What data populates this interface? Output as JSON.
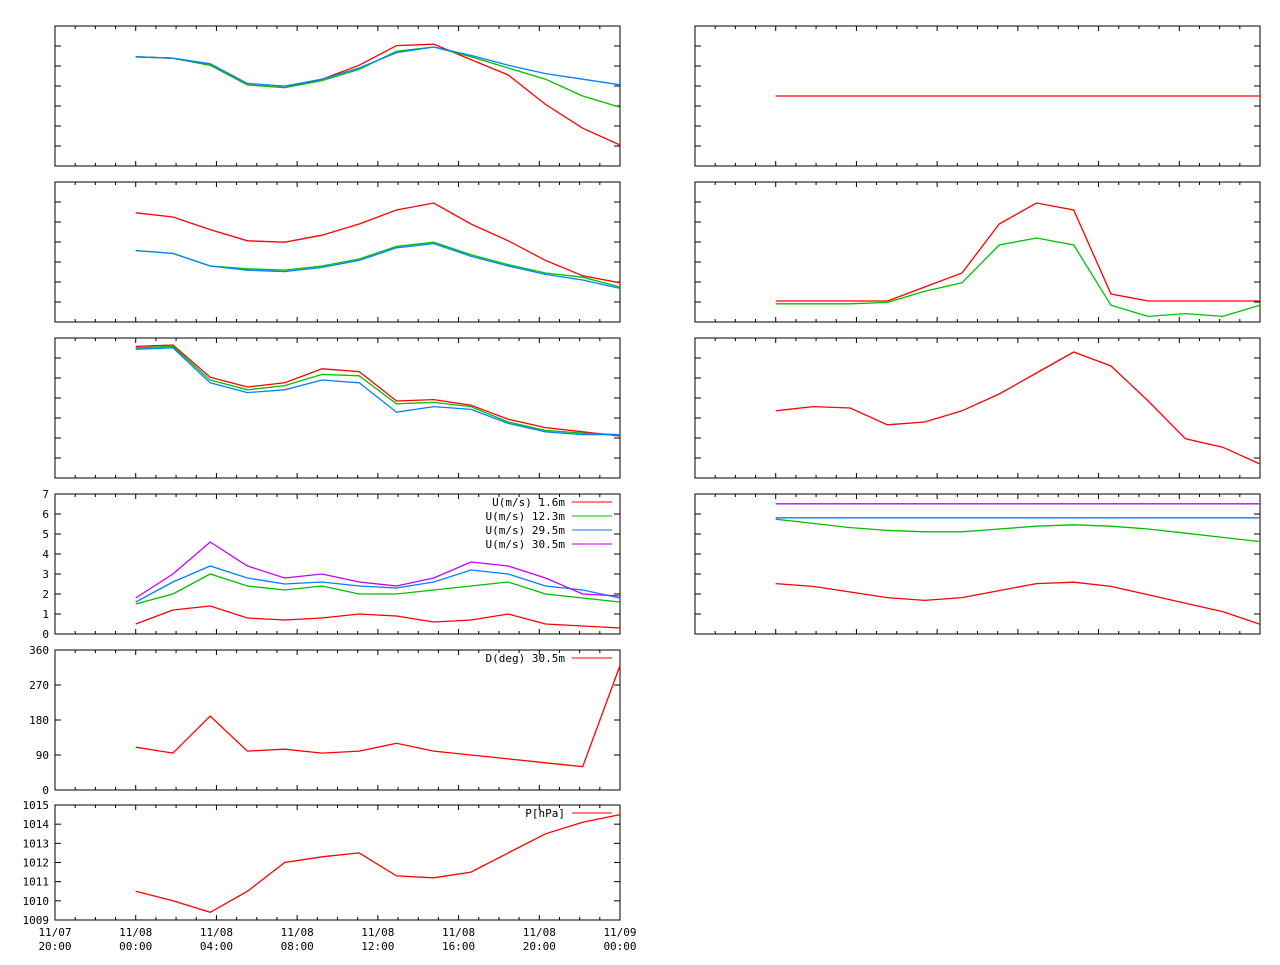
{
  "chart_data": {
    "type": "line",
    "x_range": [
      "11/07 20:00",
      "11/09 00:00"
    ],
    "x_ticks": [
      {
        "date": "11/07",
        "time": "20:00"
      },
      {
        "date": "11/08",
        "time": "00:00"
      },
      {
        "date": "11/08",
        "time": "04:00"
      },
      {
        "date": "11/08",
        "time": "08:00"
      },
      {
        "date": "11/08",
        "time": "12:00"
      },
      {
        "date": "11/08",
        "time": "16:00"
      },
      {
        "date": "11/08",
        "time": "20:00"
      },
      {
        "date": "11/09",
        "time": "00:00"
      }
    ],
    "colors": {
      "red": "#ff0000",
      "green": "#00c000",
      "blue": "#0080ff",
      "purple": "#c000ff"
    },
    "panels": [
      {
        "id": "left-1",
        "ylabels": [],
        "legend": [],
        "series": [
          {
            "color": "red",
            "values": [
              0.78,
              0.77,
              0.72,
              0.58,
              0.56,
              0.62,
              0.72,
              0.86,
              0.87,
              0.76,
              0.65,
              0.44,
              0.27,
              0.15
            ]
          },
          {
            "color": "green",
            "values": [
              0.78,
              0.77,
              0.72,
              0.58,
              0.56,
              0.61,
              0.69,
              0.82,
              0.85,
              0.78,
              0.7,
              0.62,
              0.5,
              0.42
            ]
          },
          {
            "color": "blue",
            "values": [
              0.78,
              0.77,
              0.73,
              0.59,
              0.57,
              0.62,
              0.7,
              0.81,
              0.85,
              0.79,
              0.72,
              0.66,
              0.62,
              0.58
            ]
          }
        ]
      },
      {
        "id": "left-2",
        "ylabels": [],
        "legend": [],
        "series": [
          {
            "color": "red",
            "values": [
              0.78,
              0.75,
              0.66,
              0.58,
              0.57,
              0.62,
              0.7,
              0.8,
              0.85,
              0.7,
              0.58,
              0.44,
              0.33,
              0.28
            ]
          },
          {
            "color": "green",
            "values": [
              0.51,
              0.49,
              0.4,
              0.38,
              0.37,
              0.4,
              0.45,
              0.54,
              0.57,
              0.48,
              0.41,
              0.35,
              0.32,
              0.25
            ]
          },
          {
            "color": "blue",
            "values": [
              0.51,
              0.49,
              0.4,
              0.37,
              0.36,
              0.39,
              0.44,
              0.53,
              0.56,
              0.47,
              0.4,
              0.34,
              0.3,
              0.24
            ]
          }
        ]
      },
      {
        "id": "left-3",
        "ylabels": [],
        "legend": [],
        "series": [
          {
            "color": "red",
            "values": [
              0.94,
              0.95,
              0.72,
              0.65,
              0.68,
              0.78,
              0.76,
              0.55,
              0.56,
              0.52,
              0.42,
              0.36,
              0.33,
              0.3
            ]
          },
          {
            "color": "green",
            "values": [
              0.93,
              0.94,
              0.7,
              0.63,
              0.66,
              0.74,
              0.73,
              0.53,
              0.54,
              0.51,
              0.4,
              0.34,
              0.32,
              0.31
            ]
          },
          {
            "color": "blue",
            "values": [
              0.92,
              0.93,
              0.68,
              0.61,
              0.63,
              0.7,
              0.68,
              0.47,
              0.51,
              0.49,
              0.39,
              0.33,
              0.31,
              0.31
            ]
          }
        ]
      },
      {
        "id": "left-4",
        "ylabels": [
          "7",
          "6",
          "5",
          "4",
          "3",
          "2",
          "1",
          "0"
        ],
        "ylim": [
          0,
          7
        ],
        "legend": [
          "U(m/s)  1.6m",
          "U(m/s) 12.3m",
          "U(m/s) 29.5m",
          "U(m/s) 30.5m"
        ],
        "series": [
          {
            "name": "U(m/s)  1.6m",
            "color": "red",
            "values": [
              0.5,
              1.2,
              1.4,
              0.8,
              0.7,
              0.8,
              1.0,
              0.9,
              0.6,
              0.7,
              1.0,
              0.5,
              0.4,
              0.3
            ]
          },
          {
            "name": "U(m/s) 12.3m",
            "color": "green",
            "values": [
              1.5,
              2.0,
              3.0,
              2.4,
              2.2,
              2.4,
              2.0,
              2.0,
              2.2,
              2.4,
              2.6,
              2.0,
              1.8,
              1.6
            ]
          },
          {
            "name": "U(m/s) 29.5m",
            "color": "blue",
            "values": [
              1.6,
              2.6,
              3.4,
              2.8,
              2.5,
              2.6,
              2.4,
              2.3,
              2.6,
              3.2,
              3.0,
              2.4,
              2.2,
              1.8
            ]
          },
          {
            "name": "U(m/s) 30.5m",
            "color": "purple",
            "values": [
              1.8,
              3.0,
              4.6,
              3.4,
              2.8,
              3.0,
              2.6,
              2.4,
              2.8,
              3.6,
              3.4,
              2.8,
              2.0,
              1.9
            ]
          }
        ]
      },
      {
        "id": "left-5",
        "ylabels": [
          "360",
          "270",
          "180",
          "90",
          "0"
        ],
        "ylim": [
          0,
          360
        ],
        "legend": [
          "D(deg)  30.5m"
        ],
        "series": [
          {
            "name": "D(deg)  30.5m",
            "color": "red",
            "values": [
              110,
              95,
              190,
              100,
              105,
              95,
              100,
              120,
              100,
              90,
              80,
              70,
              60,
              320
            ]
          }
        ]
      },
      {
        "id": "left-6",
        "ylabels": [
          "1015",
          "1014",
          "1013",
          "1012",
          "1011",
          "1010",
          "1009"
        ],
        "ylim": [
          1009,
          1015
        ],
        "legend": [
          "P[hPa]"
        ],
        "series": [
          {
            "name": "P[hPa]",
            "color": "red",
            "values": [
              1010.5,
              1010.0,
              1009.4,
              1010.5,
              1012.0,
              1012.3,
              1012.5,
              1011.3,
              1011.2,
              1011.5,
              1012.5,
              1013.5,
              1014.1,
              1014.5
            ]
          }
        ]
      },
      {
        "id": "right-1",
        "ylabels": [],
        "legend": [],
        "series": [
          {
            "color": "red",
            "values": [
              0.5,
              0.5,
              0.5,
              0.5,
              0.5,
              0.5,
              0.5,
              0.5,
              0.5,
              0.5,
              0.5,
              0.5,
              0.5,
              0.5
            ]
          }
        ]
      },
      {
        "id": "right-2",
        "ylabels": [],
        "legend": [],
        "series": [
          {
            "color": "red",
            "values": [
              0.15,
              0.15,
              0.15,
              0.15,
              0.25,
              0.35,
              0.7,
              0.85,
              0.8,
              0.2,
              0.15,
              0.15,
              0.15,
              0.15
            ]
          },
          {
            "color": "green",
            "values": [
              0.13,
              0.13,
              0.13,
              0.14,
              0.22,
              0.28,
              0.55,
              0.6,
              0.55,
              0.12,
              0.04,
              0.06,
              0.04,
              0.12
            ]
          }
        ]
      },
      {
        "id": "right-3",
        "ylabels": [],
        "legend": [],
        "series": [
          {
            "color": "red",
            "values": [
              0.48,
              0.51,
              0.5,
              0.38,
              0.4,
              0.48,
              0.6,
              0.75,
              0.9,
              0.8,
              0.55,
              0.28,
              0.22,
              0.1
            ]
          }
        ]
      },
      {
        "id": "right-4",
        "ylabels": [],
        "legend": [],
        "series": [
          {
            "color": "purple",
            "values": [
              0.93,
              0.93,
              0.93,
              0.93,
              0.93,
              0.93,
              0.93,
              0.93,
              0.93,
              0.93,
              0.93,
              0.93,
              0.93,
              0.93
            ]
          },
          {
            "color": "blue",
            "values": [
              0.83,
              0.83,
              0.83,
              0.83,
              0.83,
              0.83,
              0.83,
              0.83,
              0.83,
              0.83,
              0.83,
              0.83,
              0.83,
              0.83
            ]
          },
          {
            "color": "green",
            "values": [
              0.82,
              0.79,
              0.76,
              0.74,
              0.73,
              0.73,
              0.75,
              0.77,
              0.78,
              0.77,
              0.75,
              0.72,
              0.69,
              0.66
            ]
          },
          {
            "color": "red",
            "values": [
              0.36,
              0.34,
              0.3,
              0.26,
              0.24,
              0.26,
              0.31,
              0.36,
              0.37,
              0.34,
              0.28,
              0.22,
              0.16,
              0.07
            ]
          }
        ]
      }
    ]
  }
}
